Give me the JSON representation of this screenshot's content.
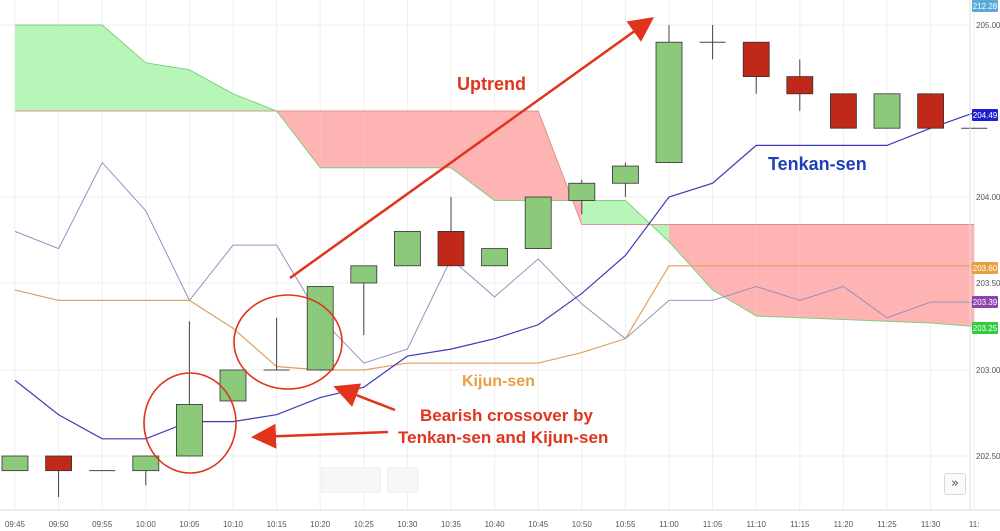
{
  "chart_data": {
    "type": "candlestick",
    "x_ticks": [
      "09:45",
      "09:50",
      "09:55",
      "10:00",
      "10:05",
      "10:10",
      "10:15",
      "10:20",
      "10:25",
      "10:30",
      "10:35",
      "10:40",
      "10:45",
      "10:50",
      "10:55",
      "11:00",
      "11:05",
      "11:10",
      "11:15",
      "11:20",
      "11:25",
      "11:30",
      "11:"
    ],
    "y_ticks": [
      202.5,
      203.0,
      203.5,
      204.0,
      205.0
    ],
    "candles": [
      {
        "time": "09:45",
        "open": 202.4,
        "high": 202.5,
        "low": 202.4,
        "close": 202.5
      },
      {
        "time": "09:50",
        "open": 202.5,
        "high": 202.5,
        "low": 202.22,
        "close": 202.4
      },
      {
        "time": "09:55",
        "open": 202.4,
        "high": 202.4,
        "low": 202.4,
        "close": 202.4
      },
      {
        "time": "10:00",
        "open": 202.4,
        "high": 202.5,
        "low": 202.3,
        "close": 202.5
      },
      {
        "time": "10:05",
        "open": 202.5,
        "high": 203.28,
        "low": 202.5,
        "close": 202.8
      },
      {
        "time": "10:10",
        "open": 202.82,
        "high": 203.0,
        "low": 202.82,
        "close": 203.0
      },
      {
        "time": "10:15",
        "open": 203.0,
        "high": 203.3,
        "low": 203.0,
        "close": 203.0
      },
      {
        "time": "10:20",
        "open": 203.0,
        "high": 203.48,
        "low": 203.0,
        "close": 203.48
      },
      {
        "time": "10:25",
        "open": 203.5,
        "high": 203.6,
        "low": 203.2,
        "close": 203.6
      },
      {
        "time": "10:30",
        "open": 203.6,
        "high": 203.8,
        "low": 203.6,
        "close": 203.8
      },
      {
        "time": "10:35",
        "open": 203.8,
        "high": 204.0,
        "low": 203.6,
        "close": 203.6
      },
      {
        "time": "10:40",
        "open": 203.6,
        "high": 203.7,
        "low": 203.6,
        "close": 203.7
      },
      {
        "time": "10:45",
        "open": 203.7,
        "high": 204.0,
        "low": 203.7,
        "close": 204.0
      },
      {
        "time": "10:50",
        "open": 203.98,
        "high": 204.1,
        "low": 203.9,
        "close": 204.08
      },
      {
        "time": "10:55",
        "open": 204.08,
        "high": 204.2,
        "low": 204.0,
        "close": 204.18
      },
      {
        "time": "11:00",
        "open": 204.2,
        "high": 205.0,
        "low": 204.2,
        "close": 204.9
      },
      {
        "time": "11:05",
        "open": 204.9,
        "high": 205.0,
        "low": 204.8,
        "close": 204.9
      },
      {
        "time": "11:10",
        "open": 204.9,
        "high": 204.9,
        "low": 204.6,
        "close": 204.7
      },
      {
        "time": "11:15",
        "open": 204.7,
        "high": 204.8,
        "low": 204.5,
        "close": 204.6
      },
      {
        "time": "11:20",
        "open": 204.6,
        "high": 204.6,
        "low": 204.4,
        "close": 204.4
      },
      {
        "time": "11:25",
        "open": 204.4,
        "high": 204.6,
        "low": 204.4,
        "close": 204.6
      },
      {
        "time": "11:30",
        "open": 204.6,
        "high": 204.6,
        "low": 204.4,
        "close": 204.4
      },
      {
        "time": "11:35",
        "open": 204.4,
        "high": 204.4,
        "low": 204.4,
        "close": 204.4
      }
    ],
    "tenkan_sen": [
      202.94,
      202.74,
      202.6,
      202.6,
      202.7,
      202.7,
      202.74,
      202.84,
      202.9,
      203.08,
      203.12,
      203.18,
      203.26,
      203.44,
      203.66,
      204.0,
      204.08,
      204.3,
      204.3,
      204.3,
      204.3,
      204.4,
      204.49
    ],
    "kijun_sen": [
      203.46,
      203.4,
      203.4,
      203.4,
      203.4,
      203.24,
      203.02,
      203.0,
      203.0,
      203.04,
      203.04,
      203.04,
      203.04,
      203.1,
      203.18,
      203.6,
      203.6,
      203.6,
      203.6,
      203.6,
      203.6,
      203.6,
      203.6
    ],
    "chikou_span": [
      203.8,
      203.7,
      204.2,
      203.92,
      203.4,
      203.72,
      203.72,
      203.3,
      203.04,
      203.12,
      203.64,
      203.42,
      203.64,
      203.38,
      203.18,
      203.4,
      203.4,
      203.48,
      203.4,
      203.48,
      203.3,
      203.39,
      203.39
    ],
    "senkou_span_a": [
      205.0,
      205.0,
      205.0,
      204.78,
      204.74,
      204.6,
      204.5,
      204.17,
      204.17,
      204.17,
      204.17,
      203.98,
      203.98,
      203.98,
      203.98,
      203.74,
      203.46,
      203.31,
      203.3,
      203.29,
      203.28,
      203.27,
      203.25
    ],
    "senkou_span_b": [
      204.5,
      204.5,
      204.5,
      204.5,
      204.5,
      204.5,
      204.5,
      204.5,
      204.5,
      204.5,
      204.5,
      204.5,
      204.5,
      203.84,
      203.84,
      203.84,
      203.84,
      203.84,
      203.84,
      203.84,
      203.84,
      203.84,
      203.84
    ],
    "price_badges": [
      {
        "label": "212.28",
        "color": "#5aa9d6"
      },
      {
        "label": "204.49",
        "color": "#1f1fd0"
      },
      {
        "label": "203.60",
        "color": "#e8a040"
      },
      {
        "label": "203.39",
        "color": "#8e44ad"
      },
      {
        "label": "203.25",
        "color": "#2ecc40"
      }
    ],
    "colors": {
      "bull_candle": "#8cc97a",
      "bear_candle": "#c0291a",
      "tenkan": "#3b3bb8",
      "kijun": "#e0a060",
      "chikou": "#9a90c0",
      "cloud_bull": "#b8f5b8",
      "cloud_bear": "#ffb4b4",
      "annotation": "#e0341c"
    }
  },
  "annotations": {
    "uptrend": "Uptrend",
    "tenkan": "Tenkan-sen",
    "kijun": "Kijun-sen",
    "bearish_line1": "Bearish crossover by",
    "bearish_line2": "Tenkan-sen and Kijun-sen"
  },
  "nav": {
    "expand_label": "»"
  }
}
